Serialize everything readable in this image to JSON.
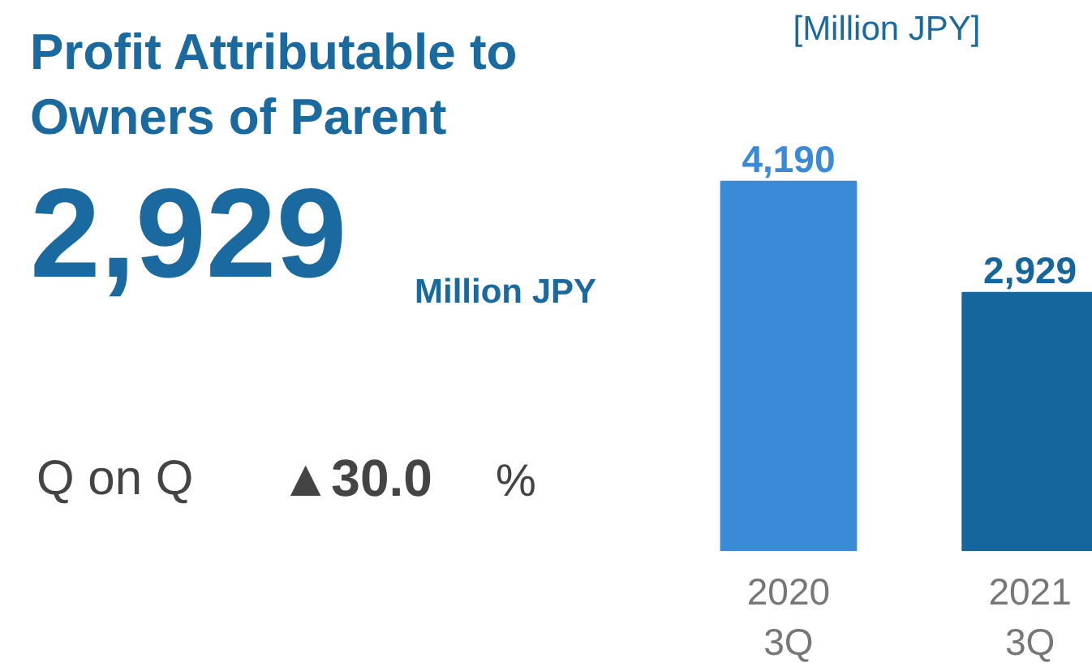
{
  "chart_data": {
    "type": "bar",
    "title": "Profit Attributable to\nOwners of Parent",
    "ylabel": "[Million JPY]",
    "categories": [
      "2020\n3Q",
      "2021\n3Q"
    ],
    "values": [
      4190,
      2929
    ],
    "colors": [
      "#3a8ad8",
      "#14669c"
    ],
    "value_labels": [
      "4,190",
      "2,929"
    ],
    "annotations": [
      "2,929",
      "Million JPY",
      "Q on Q",
      "▲30.0",
      "%"
    ]
  }
}
